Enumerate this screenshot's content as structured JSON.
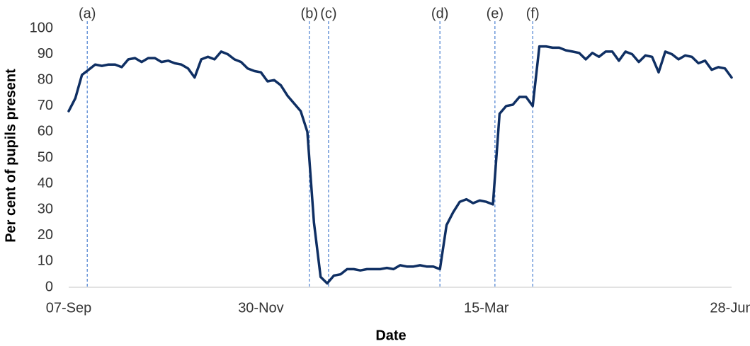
{
  "chart_data": {
    "type": "line",
    "x_label": "Date",
    "y_label": "Per cent of pupils present",
    "categories": [
      "07-Sep",
      null,
      null,
      null,
      null,
      null,
      null,
      null,
      null,
      null,
      null,
      null,
      null,
      null,
      null,
      null,
      null,
      null,
      null,
      null,
      null,
      null,
      null,
      null,
      null,
      null,
      null,
      null,
      null,
      "30-Nov",
      null,
      null,
      null,
      null,
      null,
      null,
      null,
      null,
      null,
      null,
      null,
      null,
      null,
      null,
      null,
      null,
      null,
      null,
      null,
      null,
      null,
      null,
      null,
      null,
      null,
      null,
      null,
      null,
      null,
      null,
      null,
      null,
      null,
      "15-Mar",
      null,
      null,
      null,
      null,
      null,
      null,
      null,
      null,
      null,
      null,
      null,
      null,
      null,
      null,
      null,
      null,
      null,
      null,
      null,
      null,
      null,
      null,
      null,
      null,
      null,
      null,
      null,
      null,
      null,
      null,
      null,
      null,
      null,
      null,
      null,
      null,
      "28-Jun"
    ],
    "values": [
      68,
      73,
      82,
      84,
      86,
      85.5,
      86,
      86,
      85,
      88,
      88.5,
      87,
      88.5,
      88.5,
      87,
      87.5,
      86.5,
      86,
      84.5,
      81,
      88,
      89,
      88,
      91,
      90,
      88,
      87,
      84.5,
      83.5,
      83,
      79.5,
      80,
      78,
      74,
      71,
      68,
      60,
      25,
      4,
      1.5,
      4.5,
      5,
      7,
      7,
      6.5,
      7,
      7,
      7,
      7.5,
      7,
      8.5,
      8,
      8,
      8.5,
      8,
      8,
      7,
      24,
      29,
      33,
      34,
      32.5,
      33.5,
      33,
      32,
      67,
      70,
      70.5,
      73.5,
      73.5,
      70,
      93,
      93,
      92.5,
      92.5,
      91.5,
      91,
      90.5,
      88,
      90.5,
      89,
      91,
      91,
      87.5,
      91,
      90,
      87,
      89.5,
      89,
      83,
      91,
      90,
      88,
      89.5,
      89,
      86.5,
      87.5,
      84,
      85,
      84.5,
      81
    ],
    "color": "#0f2f63",
    "ylim": [
      0,
      100
    ],
    "yticks": [
      0,
      10,
      20,
      30,
      40,
      50,
      60,
      70,
      80,
      90,
      100
    ],
    "annotations": [
      {
        "label": "(a)",
        "x": 2.8
      },
      {
        "label": "(b)",
        "x": 36.3
      },
      {
        "label": "(c)",
        "x": 39.2
      },
      {
        "label": "(d)",
        "x": 56
      },
      {
        "label": "(e)",
        "x": 64.3
      },
      {
        "label": "(f)",
        "x": 70
      }
    ],
    "annotation_color": "#4a7fd0"
  }
}
